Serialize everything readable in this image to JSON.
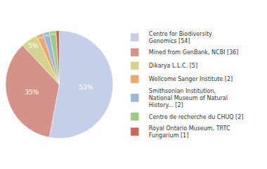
{
  "chart_data": {
    "type": "pie",
    "categories": [
      "Centre for Biodiversity\nGenomics [54]",
      "Mined from GenBank, NCBI [36]",
      "Dikarya L.L.C. [5]",
      "Wellcome Sanger Institute [2]",
      "Smithsonian Institution,\nNational Museum of Natural\nHistory... [2]",
      "Centre de recherche du CHUQ [2]",
      "Royal Ontario Museum, TRTC\nFungarium [1]"
    ],
    "values": [
      53,
      35,
      5,
      2,
      2,
      2,
      1
    ],
    "value_labels": [
      "53%",
      "35%",
      "5%",
      "2%",
      "2%",
      "2%",
      null
    ],
    "colors": [
      "#c5cfe8",
      "#d4938a",
      "#d4d490",
      "#e8a870",
      "#9ab8d4",
      "#a0c888",
      "#cc6655"
    ],
    "data_labels": true,
    "legend": "right"
  }
}
